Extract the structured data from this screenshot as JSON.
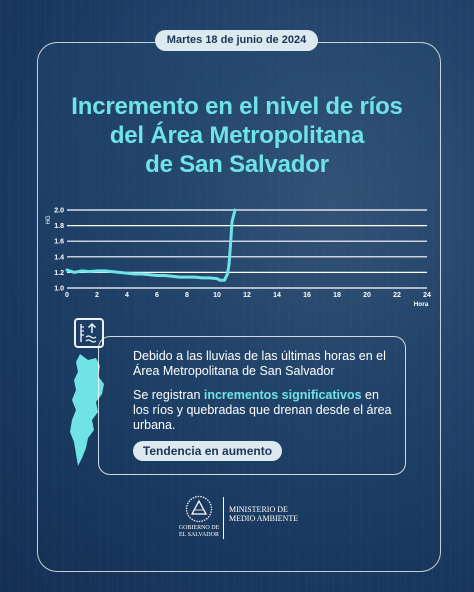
{
  "date": "Martes 18 de junio de 2024",
  "title_lines": [
    "Incremento en el nivel de ríos",
    "del Área Metropolitana",
    "de San Salvador"
  ],
  "chart_data": {
    "type": "line",
    "ylabel": "HG",
    "xlabel": "Hora",
    "xlim": [
      0,
      24
    ],
    "ylim": [
      1.0,
      2.0
    ],
    "x_ticks": [
      0,
      2,
      4,
      6,
      8,
      10,
      12,
      14,
      16,
      18,
      20,
      22,
      24
    ],
    "y_ticks": [
      "1.0",
      "1.2",
      "1.4",
      "1.6",
      "1.8",
      "2.0"
    ],
    "grid": true,
    "color": "#6fe3e6",
    "series": [
      {
        "x": [
          0,
          0.5,
          1,
          1.5,
          2,
          2.5,
          3,
          3.5,
          4,
          4.5,
          5,
          5.5,
          6,
          6.5,
          7,
          7.5,
          8,
          8.5,
          9,
          9.5,
          10,
          10.2,
          10.5,
          10.7,
          10.8,
          10.9,
          11,
          11.2
        ],
        "y": [
          1.23,
          1.2,
          1.22,
          1.21,
          1.22,
          1.22,
          1.21,
          1.2,
          1.19,
          1.18,
          1.18,
          1.17,
          1.16,
          1.16,
          1.15,
          1.14,
          1.14,
          1.14,
          1.13,
          1.13,
          1.12,
          1.1,
          1.1,
          1.18,
          1.3,
          1.55,
          1.85,
          2.0
        ]
      }
    ]
  },
  "info": {
    "line1": "Debido a las lluvias de las últimas horas en el Área Metropolitana de San Salvador",
    "line2_pre": "Se registran ",
    "line2_hl": "incrementos significativos",
    "line2_post": " en los ríos y quebradas que drenan desde el área urbana.",
    "trend": "Tendencia en aumento"
  },
  "footer": {
    "gov_lines": [
      "GOBIERNO DE",
      "EL SALVADOR"
    ],
    "ministry_lines": [
      "MINISTERIO DE",
      "MEDIO AMBIENTE"
    ]
  },
  "icons": {
    "water_level": "water-level-icon",
    "map": "san-salvador-map-icon",
    "seal": "el-salvador-seal-icon"
  }
}
